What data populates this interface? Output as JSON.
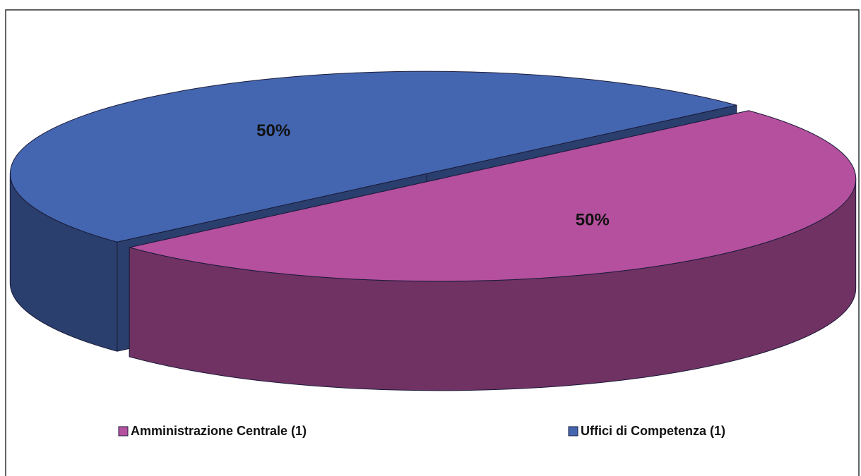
{
  "chart_data": {
    "type": "pie",
    "categories": [
      "Amministrazione Centrale (1)",
      "Uffici di Competenza (1)"
    ],
    "values": [
      50,
      50
    ],
    "value_labels": [
      "50%",
      "50%"
    ],
    "colors": [
      "#b4509e",
      "#4466b0"
    ],
    "legend": "bottom"
  }
}
